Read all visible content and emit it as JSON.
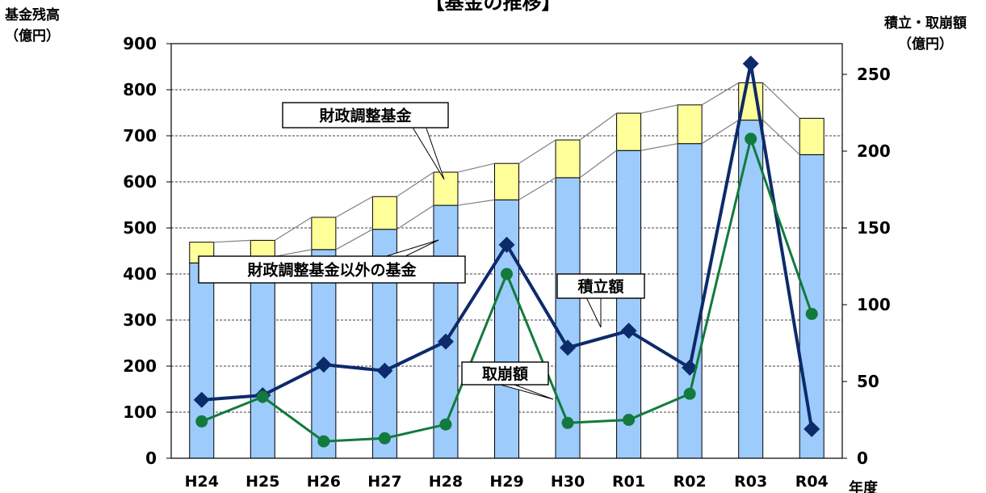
{
  "chart_data": {
    "type": "bar",
    "title": "【基金の推移】",
    "categories": [
      "H24",
      "H25",
      "H26",
      "H27",
      "H28",
      "H29",
      "H30",
      "R01",
      "R02",
      "R03",
      "R04"
    ],
    "x_unit_label": "年度",
    "left_axis": {
      "label_line1": "基金残高",
      "label_line2": "（億円）",
      "ylim": [
        0,
        900
      ],
      "ticks": [
        0,
        100,
        200,
        300,
        400,
        500,
        600,
        700,
        800,
        900
      ]
    },
    "right_axis": {
      "label_line1": "積立・取崩額",
      "label_line2": "（億円）",
      "ylim": [
        0,
        270
      ],
      "ticks": [
        0,
        50,
        100,
        150,
        200,
        250
      ]
    },
    "bar_series": [
      {
        "name": "財政調整基金以外の基金",
        "axis": "left",
        "color": "#9DCBFB",
        "values": [
          424,
          438,
          453,
          497,
          549,
          561,
          609,
          668,
          683,
          734,
          659
        ]
      },
      {
        "name": "財政調整基金",
        "axis": "left",
        "color": "#FFFF99",
        "values": [
          45,
          35,
          70,
          71,
          72,
          79,
          82,
          81,
          84,
          81,
          79
        ]
      }
    ],
    "line_series": [
      {
        "name": "積立額",
        "axis": "right",
        "color": "#0D2A6B",
        "marker": "diamond",
        "values": [
          38,
          41,
          61,
          57,
          76,
          139,
          72,
          83,
          59,
          257,
          19
        ]
      },
      {
        "name": "取崩額",
        "axis": "right",
        "color": "#127A3C",
        "marker": "circle",
        "values": [
          24,
          40,
          11,
          13,
          22,
          120,
          23,
          25,
          42,
          208,
          94
        ]
      }
    ],
    "callouts": {
      "zaisei": "財政調整基金",
      "other": "財政調整基金以外の基金",
      "tsumitate": "積立額",
      "torikuzushi": "取崩額"
    },
    "grid": "horizontal dashed"
  }
}
